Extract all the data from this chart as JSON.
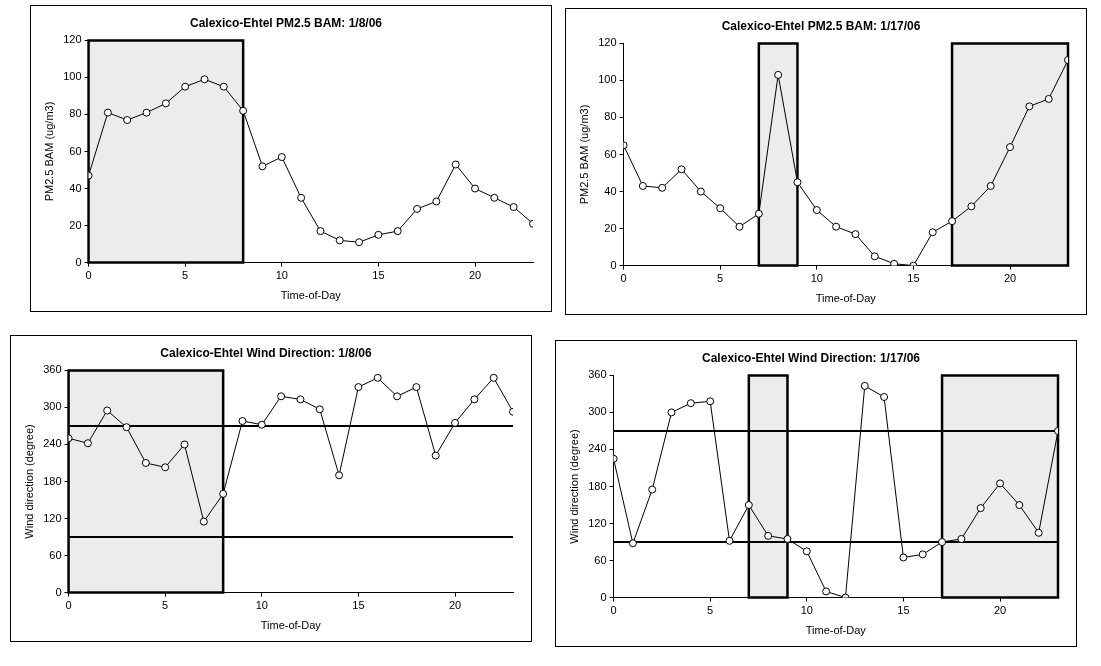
{
  "chart_data": [
    {
      "type": "line",
      "title": "Calexico-Ehtel PM2.5 BAM: 1/8/06",
      "xlabel": "Time-of-Day",
      "ylabel": "PM2.5 BAM (ug/m3)",
      "x": [
        0,
        1,
        2,
        3,
        4,
        5,
        6,
        7,
        8,
        9,
        10,
        11,
        12,
        13,
        14,
        15,
        16,
        17,
        18,
        19,
        20,
        21,
        22,
        23
      ],
      "series": [
        {
          "color": "#000000",
          "values": [
            47,
            81,
            77,
            81,
            86,
            95,
            99,
            95,
            82,
            52,
            57,
            35,
            17,
            12,
            11,
            15,
            17,
            29,
            33,
            53,
            40,
            35,
            30,
            21
          ]
        }
      ],
      "xlim": [
        0,
        23
      ],
      "xticks": [
        0,
        5,
        10,
        15,
        20
      ],
      "ylim": [
        0,
        120
      ],
      "yticks": [
        0,
        20,
        40,
        60,
        80,
        100,
        120
      ],
      "bands": [
        {
          "axis": "x",
          "from": 0,
          "to": 8
        }
      ],
      "marker": "circle",
      "legend": false,
      "grid": false
    },
    {
      "type": "line",
      "title": "Calexico-Ehtel PM2.5 BAM: 1/17/06",
      "xlabel": "Time-of-Day",
      "ylabel": "PM2.5 BAM (ug/m3)",
      "x": [
        0,
        1,
        2,
        3,
        4,
        5,
        6,
        7,
        8,
        9,
        10,
        11,
        12,
        13,
        14,
        15,
        16,
        17,
        18,
        19,
        20,
        21,
        22,
        23
      ],
      "series": [
        {
          "color": "#000000",
          "values": [
            65,
            43,
            42,
            52,
            40,
            31,
            21,
            28,
            103,
            45,
            30,
            21,
            17,
            5,
            1,
            0,
            18,
            24,
            32,
            43,
            64,
            86,
            90,
            111
          ]
        }
      ],
      "xlim": [
        0,
        23
      ],
      "xticks": [
        0,
        5,
        10,
        15,
        20
      ],
      "ylim": [
        0,
        120
      ],
      "yticks": [
        0,
        20,
        40,
        60,
        80,
        100,
        120
      ],
      "bands": [
        {
          "axis": "x",
          "from": 7,
          "to": 9
        },
        {
          "axis": "x",
          "from": 17,
          "to": 23
        }
      ],
      "marker": "circle",
      "legend": false,
      "grid": false
    },
    {
      "type": "line",
      "title": "Calexico-Ehtel Wind Direction: 1/8/06",
      "xlabel": "Time-of-Day",
      "ylabel": "Wind direction (degree)",
      "x": [
        0,
        1,
        2,
        3,
        4,
        5,
        6,
        7,
        8,
        9,
        10,
        11,
        12,
        13,
        14,
        15,
        16,
        17,
        18,
        19,
        20,
        21,
        22,
        23
      ],
      "series": [
        {
          "color": "#000000",
          "values": [
            250,
            242,
            295,
            268,
            210,
            203,
            240,
            115,
            160,
            278,
            272,
            318,
            313,
            297,
            190,
            333,
            348,
            318,
            333,
            222,
            275,
            313,
            348,
            293
          ]
        }
      ],
      "xlim": [
        0,
        23
      ],
      "xticks": [
        0,
        5,
        10,
        15,
        20
      ],
      "ylim": [
        0,
        360
      ],
      "yticks": [
        0,
        60,
        120,
        180,
        240,
        300,
        360
      ],
      "bands": [
        {
          "axis": "x",
          "from": 0,
          "to": 8
        }
      ],
      "ref_lines": [
        {
          "axis": "y",
          "value": 90
        },
        {
          "axis": "y",
          "value": 270
        }
      ],
      "marker": "circle",
      "legend": false,
      "grid": false
    },
    {
      "type": "line",
      "title": "Calexico-Ehtel Wind Direction: 1/17/06",
      "xlabel": "Time-of-Day",
      "ylabel": "Wind direction (degree)",
      "x": [
        0,
        1,
        2,
        3,
        4,
        5,
        6,
        7,
        8,
        9,
        10,
        11,
        12,
        13,
        14,
        15,
        16,
        17,
        18,
        19,
        20,
        21,
        22,
        23
      ],
      "series": [
        {
          "color": "#000000",
          "values": [
            225,
            88,
            175,
            300,
            315,
            318,
            92,
            150,
            100,
            95,
            75,
            10,
            0,
            343,
            325,
            65,
            70,
            90,
            95,
            145,
            185,
            150,
            105,
            270
          ]
        }
      ],
      "xlim": [
        0,
        23
      ],
      "xticks": [
        0,
        5,
        10,
        15,
        20
      ],
      "ylim": [
        0,
        360
      ],
      "yticks": [
        0,
        60,
        120,
        180,
        240,
        300,
        360
      ],
      "bands": [
        {
          "axis": "x",
          "from": 7,
          "to": 9
        },
        {
          "axis": "x",
          "from": 17,
          "to": 23
        }
      ],
      "ref_lines": [
        {
          "axis": "y",
          "value": 90
        },
        {
          "axis": "y",
          "value": 270
        }
      ],
      "marker": "circle",
      "legend": false,
      "grid": false
    }
  ]
}
